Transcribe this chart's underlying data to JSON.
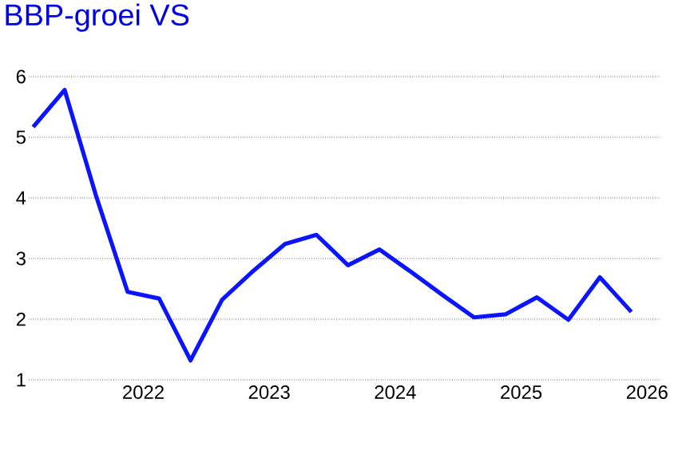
{
  "chart_data": {
    "type": "line",
    "title": "BBP-groei VS",
    "x": [
      2021.125,
      2021.375,
      2021.625,
      2021.875,
      2022.125,
      2022.375,
      2022.625,
      2022.875,
      2023.125,
      2023.375,
      2023.625,
      2023.875,
      2024.125,
      2024.375,
      2024.625,
      2024.875,
      2025.125,
      2025.375,
      2025.625,
      2025.875
    ],
    "series": [
      {
        "color": "#0a14ff",
        "values": [
          5.17,
          5.78,
          4.03,
          2.45,
          2.34,
          1.32,
          2.32,
          2.8,
          3.24,
          3.39,
          2.89,
          3.15,
          2.78,
          2.4,
          2.03,
          2.08,
          2.36,
          1.99,
          2.69,
          2.12
        ]
      }
    ],
    "xlim": [
      2021.09,
      2026.1
    ],
    "xticks": [
      2022,
      2023,
      2024,
      2025,
      2026
    ],
    "ylim": [
      1,
      6
    ],
    "yticks": [
      1,
      2,
      3,
      4,
      5,
      6
    ],
    "grid": "y",
    "marker": "none",
    "line_style": "solid"
  }
}
